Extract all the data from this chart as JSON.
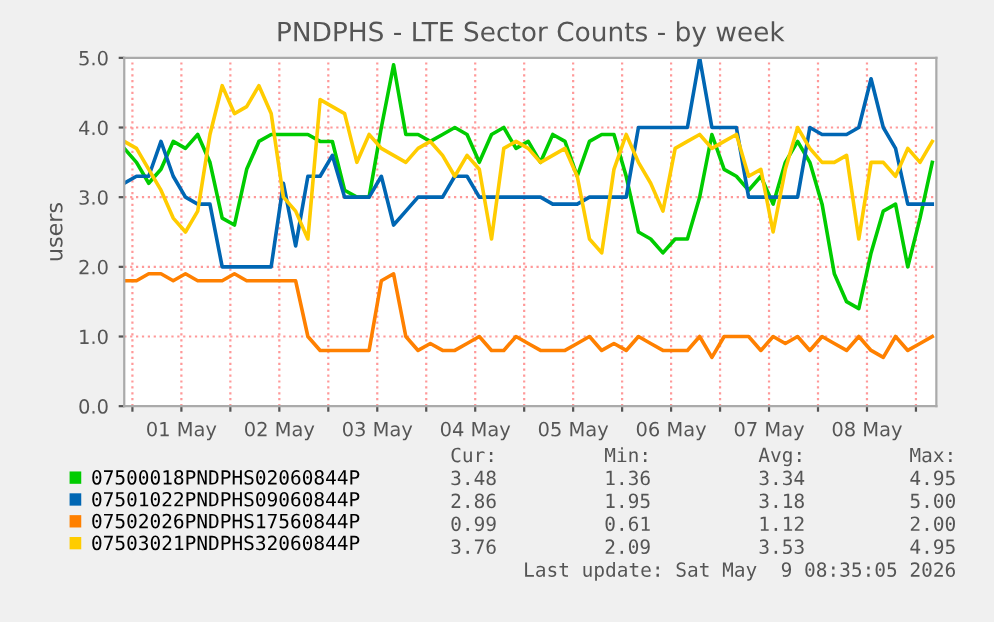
{
  "chart_data": {
    "type": "line",
    "title": "PNDPHS - LTE Sector Counts - by week",
    "ylabel": "users",
    "x": [
      "2026-04-30T22:00",
      "2026-05-01T01:00",
      "2026-05-01T04:00",
      "2026-05-01T07:00",
      "2026-05-01T10:00",
      "2026-05-01T13:00",
      "2026-05-01T16:00",
      "2026-05-01T19:00",
      "2026-05-01T22:00",
      "2026-05-02T01:00",
      "2026-05-02T04:00",
      "2026-05-02T07:00",
      "2026-05-02T10:00",
      "2026-05-02T13:00",
      "2026-05-02T16:00",
      "2026-05-02T19:00",
      "2026-05-02T22:00",
      "2026-05-03T01:00",
      "2026-05-03T04:00",
      "2026-05-03T07:00",
      "2026-05-03T10:00",
      "2026-05-03T13:00",
      "2026-05-03T16:00",
      "2026-05-03T19:00",
      "2026-05-03T22:00",
      "2026-05-04T01:00",
      "2026-05-04T04:00",
      "2026-05-04T07:00",
      "2026-05-04T10:00",
      "2026-05-04T13:00",
      "2026-05-04T16:00",
      "2026-05-04T19:00",
      "2026-05-04T22:00",
      "2026-05-05T01:00",
      "2026-05-05T04:00",
      "2026-05-05T07:00",
      "2026-05-05T10:00",
      "2026-05-05T13:00",
      "2026-05-05T16:00",
      "2026-05-05T19:00",
      "2026-05-05T22:00",
      "2026-05-06T01:00",
      "2026-05-06T04:00",
      "2026-05-06T07:00",
      "2026-05-06T10:00",
      "2026-05-06T13:00",
      "2026-05-06T16:00",
      "2026-05-06T19:00",
      "2026-05-06T22:00",
      "2026-05-07T01:00",
      "2026-05-07T04:00",
      "2026-05-07T07:00",
      "2026-05-07T10:00",
      "2026-05-07T13:00",
      "2026-05-07T16:00",
      "2026-05-07T19:00",
      "2026-05-07T22:00",
      "2026-05-08T01:00",
      "2026-05-08T04:00",
      "2026-05-08T07:00",
      "2026-05-08T10:00",
      "2026-05-08T13:00",
      "2026-05-08T16:00",
      "2026-05-08T19:00",
      "2026-05-08T22:00",
      "2026-05-09T01:00",
      "2026-05-09T04:00"
    ],
    "series": [
      {
        "name": "07500018PNDPHS02060844P",
        "color": "#00cc00",
        "values": [
          3.7,
          3.5,
          3.2,
          3.4,
          3.8,
          3.7,
          3.9,
          3.5,
          2.7,
          2.6,
          3.4,
          3.8,
          3.9,
          3.9,
          3.9,
          3.9,
          3.8,
          3.8,
          3.1,
          3.0,
          3.0,
          4.0,
          4.9,
          3.9,
          3.9,
          3.8,
          3.9,
          4.0,
          3.9,
          3.5,
          3.9,
          4.0,
          3.7,
          3.8,
          3.5,
          3.9,
          3.8,
          3.3,
          3.8,
          3.9,
          3.9,
          3.3,
          2.5,
          2.4,
          2.2,
          2.4,
          2.4,
          3.0,
          3.9,
          3.4,
          3.3,
          3.1,
          3.3,
          2.9,
          3.5,
          3.8,
          3.5,
          2.9,
          1.9,
          1.5,
          1.4,
          2.2,
          2.8,
          2.9,
          2.0,
          2.7,
          3.5
        ]
      },
      {
        "name": "07501022PNDPHS09060844P",
        "color": "#0066b3",
        "values": [
          3.2,
          3.3,
          3.3,
          3.8,
          3.3,
          3.0,
          2.9,
          2.9,
          2.0,
          2.0,
          2.0,
          2.0,
          2.0,
          3.2,
          2.3,
          3.3,
          3.3,
          3.6,
          3.0,
          3.0,
          3.0,
          3.3,
          2.6,
          2.8,
          3.0,
          3.0,
          3.0,
          3.3,
          3.3,
          3.0,
          3.0,
          3.0,
          3.0,
          3.0,
          3.0,
          2.9,
          2.9,
          2.9,
          3.0,
          3.0,
          3.0,
          3.0,
          4.0,
          4.0,
          4.0,
          4.0,
          4.0,
          5.0,
          4.0,
          4.0,
          4.0,
          3.0,
          3.0,
          3.0,
          3.0,
          3.0,
          4.0,
          3.9,
          3.9,
          3.9,
          4.0,
          4.7,
          4.0,
          3.7,
          2.9,
          2.9,
          2.9
        ]
      },
      {
        "name": "07502026PNDPHS17560844P",
        "color": "#ff8000",
        "values": [
          1.8,
          1.8,
          1.9,
          1.9,
          1.8,
          1.9,
          1.8,
          1.8,
          1.8,
          1.9,
          1.8,
          1.8,
          1.8,
          1.8,
          1.8,
          1.0,
          0.8,
          0.8,
          0.8,
          0.8,
          0.8,
          1.8,
          1.9,
          1.0,
          0.8,
          0.9,
          0.8,
          0.8,
          0.9,
          1.0,
          0.8,
          0.8,
          1.0,
          0.9,
          0.8,
          0.8,
          0.8,
          0.9,
          1.0,
          0.8,
          0.9,
          0.8,
          1.0,
          0.9,
          0.8,
          0.8,
          0.8,
          1.0,
          0.7,
          1.0,
          1.0,
          1.0,
          0.8,
          1.0,
          0.9,
          1.0,
          0.8,
          1.0,
          0.9,
          0.8,
          1.0,
          0.8,
          0.7,
          1.0,
          0.8,
          0.9,
          1.0
        ]
      },
      {
        "name": "07503021PNDPHS32060844P",
        "color": "#ffcc00",
        "values": [
          3.8,
          3.7,
          3.4,
          3.1,
          2.7,
          2.5,
          2.8,
          3.9,
          4.6,
          4.2,
          4.3,
          4.6,
          4.2,
          3.0,
          2.8,
          2.4,
          4.4,
          4.3,
          4.2,
          3.5,
          3.9,
          3.7,
          3.6,
          3.5,
          3.7,
          3.8,
          3.6,
          3.3,
          3.6,
          3.4,
          2.4,
          3.7,
          3.8,
          3.7,
          3.5,
          3.6,
          3.7,
          3.3,
          2.4,
          2.2,
          3.4,
          3.9,
          3.5,
          3.2,
          2.8,
          3.7,
          3.8,
          3.9,
          3.7,
          3.8,
          3.9,
          3.3,
          3.4,
          2.5,
          3.4,
          4.0,
          3.7,
          3.5,
          3.5,
          3.6,
          2.4,
          3.5,
          3.5,
          3.3,
          3.7,
          3.5,
          3.8
        ]
      }
    ],
    "xlim": [
      "2026-04-30T22:00",
      "2026-05-09T05:00"
    ],
    "xticks": [
      {
        "value": "2026-05-01T00:00",
        "label": null
      },
      {
        "value": "2026-05-01T12:00",
        "label": "01 May"
      },
      {
        "value": "2026-05-02T00:00",
        "label": null
      },
      {
        "value": "2026-05-02T12:00",
        "label": "02 May"
      },
      {
        "value": "2026-05-03T00:00",
        "label": null
      },
      {
        "value": "2026-05-03T12:00",
        "label": "03 May"
      },
      {
        "value": "2026-05-04T00:00",
        "label": null
      },
      {
        "value": "2026-05-04T12:00",
        "label": "04 May"
      },
      {
        "value": "2026-05-05T00:00",
        "label": null
      },
      {
        "value": "2026-05-05T12:00",
        "label": "05 May"
      },
      {
        "value": "2026-05-06T00:00",
        "label": null
      },
      {
        "value": "2026-05-06T12:00",
        "label": "06 May"
      },
      {
        "value": "2026-05-07T00:00",
        "label": null
      },
      {
        "value": "2026-05-07T12:00",
        "label": "07 May"
      },
      {
        "value": "2026-05-08T00:00",
        "label": null
      },
      {
        "value": "2026-05-08T12:00",
        "label": "08 May"
      },
      {
        "value": "2026-05-09T00:00",
        "label": null
      }
    ],
    "ylim": [
      0,
      5
    ],
    "yticks": [
      {
        "value": 0,
        "label": "0.0"
      },
      {
        "value": 1,
        "label": "1.0"
      },
      {
        "value": 2,
        "label": "2.0"
      },
      {
        "value": 3,
        "label": "3.0"
      },
      {
        "value": 4,
        "label": "4.0"
      },
      {
        "value": 5,
        "label": "5.0"
      }
    ],
    "grid": true,
    "legend": "bottom",
    "marker": "none",
    "line_style": "solid",
    "annotations": [
      "Cur:",
      "Min:",
      "Avg:",
      "Max:",
      "3.48",
      "1.36",
      "3.34",
      "4.95",
      "2.86",
      "1.95",
      "3.18",
      "5.00",
      "0.99",
      "0.61",
      "1.12",
      "2.00",
      "3.76",
      "2.09",
      "3.53",
      "4.95",
      "Last update: Sat May  9 08:35:05 2026"
    ]
  }
}
